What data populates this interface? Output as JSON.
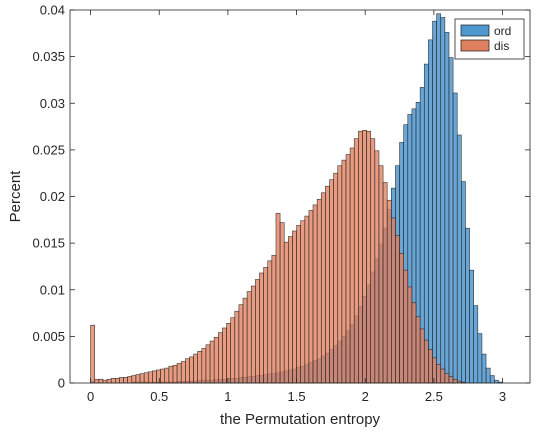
{
  "chart_data": {
    "type": "bar",
    "title": "",
    "xlabel": "the Permutation entropy",
    "ylabel": "Percent",
    "xlim": [
      -0.15,
      3.2
    ],
    "ylim": [
      0,
      0.04
    ],
    "xticks": [
      "0",
      "0.5",
      "1",
      "1.5",
      "2",
      "2.5",
      "3"
    ],
    "xtick_values": [
      0,
      0.5,
      1,
      1.5,
      2,
      2.5,
      3
    ],
    "yticks": [
      "0",
      "0.005",
      "0.01",
      "0.015",
      "0.02",
      "0.025",
      "0.03",
      "0.035",
      "0.04"
    ],
    "ytick_values": [
      0,
      0.005,
      0.01,
      0.015,
      0.02,
      0.025,
      0.03,
      0.035,
      0.04
    ],
    "bin_width": 0.03,
    "grid": false,
    "legend_position": "top-right",
    "series": [
      {
        "name": "ord",
        "color": "#4f97cf",
        "x_start": 0.0,
        "values": [
          0.0002,
          0.0,
          0.0,
          0.0,
          0.0,
          0.0,
          0.0,
          0.0,
          0.0,
          0.0,
          0.0001,
          0.0001,
          0.0001,
          0.0001,
          0.0001,
          0.0001,
          0.0001,
          0.0001,
          0.0001,
          0.0001,
          0.0001,
          0.0002,
          0.0002,
          0.0002,
          0.0002,
          0.0002,
          0.0003,
          0.0003,
          0.0003,
          0.0003,
          0.0004,
          0.0004,
          0.0004,
          0.0005,
          0.0005,
          0.0005,
          0.0006,
          0.0006,
          0.0007,
          0.0007,
          0.0008,
          0.0008,
          0.0009,
          0.001,
          0.001,
          0.0011,
          0.0012,
          0.0013,
          0.0014,
          0.0015,
          0.0017,
          0.0018,
          0.002,
          0.0022,
          0.0024,
          0.0026,
          0.0029,
          0.0032,
          0.0036,
          0.004,
          0.0045,
          0.005,
          0.0056,
          0.0063,
          0.0072,
          0.0082,
          0.0093,
          0.0105,
          0.0119,
          0.0133,
          0.0149,
          0.0166,
          0.0186,
          0.0209,
          0.0233,
          0.0258,
          0.0277,
          0.0288,
          0.0294,
          0.0301,
          0.0317,
          0.0342,
          0.0368,
          0.0388,
          0.0396,
          0.0392,
          0.0376,
          0.0349,
          0.0311,
          0.0266,
          0.0216,
          0.0166,
          0.0121,
          0.0083,
          0.0053,
          0.0031,
          0.0016,
          0.0008,
          0.0003,
          0.0001,
          0.0
        ]
      },
      {
        "name": "dis",
        "color": "#e07f5e",
        "x_start": 0.0,
        "values": [
          0.0062,
          0.0004,
          0.0004,
          0.0003,
          0.0004,
          0.0005,
          0.0005,
          0.0006,
          0.0006,
          0.0007,
          0.0008,
          0.0009,
          0.001,
          0.0011,
          0.0012,
          0.0013,
          0.0014,
          0.0015,
          0.0016,
          0.0018,
          0.0019,
          0.0021,
          0.0023,
          0.0026,
          0.0028,
          0.0031,
          0.0034,
          0.0037,
          0.0041,
          0.0045,
          0.0049,
          0.0054,
          0.0059,
          0.0064,
          0.007,
          0.0077,
          0.0084,
          0.0091,
          0.0098,
          0.0104,
          0.0111,
          0.0118,
          0.0124,
          0.0131,
          0.0137,
          0.0182,
          0.0172,
          0.0151,
          0.0157,
          0.0163,
          0.0169,
          0.0174,
          0.0179,
          0.0185,
          0.0191,
          0.0197,
          0.0204,
          0.0211,
          0.0218,
          0.0225,
          0.0233,
          0.0239,
          0.0245,
          0.0252,
          0.0262,
          0.027,
          0.0271,
          0.027,
          0.0262,
          0.0249,
          0.0233,
          0.0215,
          0.0196,
          0.0177,
          0.0158,
          0.0139,
          0.0121,
          0.0103,
          0.0086,
          0.0071,
          0.0058,
          0.0046,
          0.0036,
          0.0027,
          0.002,
          0.0015,
          0.001,
          0.0007,
          0.0004,
          0.0002,
          0.0001,
          0.0,
          0.0,
          0.0,
          0.0,
          0.0,
          0.0,
          0.0,
          0.0,
          0.0,
          0.0
        ]
      }
    ]
  }
}
